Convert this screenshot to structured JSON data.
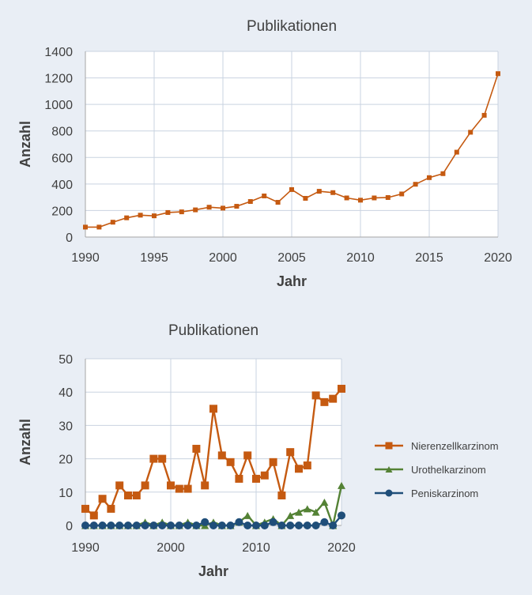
{
  "chart_data": [
    {
      "type": "line",
      "title": "Publikationen",
      "xlabel": "Jahr",
      "ylabel": "Anzahl",
      "xlim": [
        1990,
        2020
      ],
      "ylim": [
        0,
        1400
      ],
      "xticks": [
        1990,
        1995,
        2000,
        2005,
        2010,
        2015,
        2020
      ],
      "yticks": [
        0,
        200,
        400,
        600,
        800,
        1000,
        1200,
        1400
      ],
      "grid": true,
      "series": [
        {
          "name": "Publikationen",
          "color": "#c55a11",
          "marker": "square",
          "x": [
            1990,
            1991,
            1992,
            1993,
            1994,
            1995,
            1996,
            1997,
            1998,
            1999,
            2000,
            2001,
            2002,
            2003,
            2004,
            2005,
            2006,
            2007,
            2008,
            2009,
            2010,
            2011,
            2012,
            2013,
            2014,
            2015,
            2016,
            2017,
            2018,
            2019,
            2020
          ],
          "y": [
            75,
            75,
            112,
            145,
            165,
            160,
            185,
            190,
            205,
            225,
            218,
            232,
            268,
            310,
            262,
            358,
            292,
            345,
            335,
            295,
            278,
            295,
            298,
            325,
            398,
            448,
            478,
            640,
            790,
            918,
            1232
          ]
        }
      ]
    },
    {
      "type": "line",
      "title": "Publikationen",
      "xlabel": "Jahr",
      "ylabel": "Anzahl",
      "xlim": [
        1990,
        2020
      ],
      "ylim": [
        0,
        50
      ],
      "xticks": [
        1990,
        2000,
        2010,
        2020
      ],
      "yticks": [
        0,
        10,
        20,
        30,
        40,
        50
      ],
      "grid": true,
      "legend": "right",
      "series": [
        {
          "name": "Nierenzellkarzinom",
          "color": "#c55a11",
          "marker": "square",
          "x": [
            1990,
            1991,
            1992,
            1993,
            1994,
            1995,
            1996,
            1997,
            1998,
            1999,
            2000,
            2001,
            2002,
            2003,
            2004,
            2005,
            2006,
            2007,
            2008,
            2009,
            2010,
            2011,
            2012,
            2013,
            2014,
            2015,
            2016,
            2017,
            2018,
            2019,
            2020
          ],
          "y": [
            5,
            3,
            8,
            5,
            12,
            9,
            9,
            12,
            20,
            20,
            12,
            11,
            11,
            23,
            12,
            35,
            21,
            19,
            14,
            21,
            14,
            15,
            19,
            9,
            22,
            17,
            18,
            39,
            37,
            38,
            41
          ]
        },
        {
          "name": "Urothelkarzinom",
          "color": "#548235",
          "marker": "triangle",
          "x": [
            1990,
            1991,
            1992,
            1993,
            1994,
            1995,
            1996,
            1997,
            1998,
            1999,
            2000,
            2001,
            2002,
            2003,
            2004,
            2005,
            2006,
            2007,
            2008,
            2009,
            2010,
            2011,
            2012,
            2013,
            2014,
            2015,
            2016,
            2017,
            2018,
            2019,
            2020
          ],
          "y": [
            0,
            0,
            0,
            0,
            0,
            0,
            0,
            1,
            0,
            1,
            0,
            0,
            1,
            0,
            0,
            1,
            0,
            0,
            1,
            3,
            0,
            1,
            2,
            0,
            3,
            4,
            5,
            4,
            7,
            0,
            12
          ]
        },
        {
          "name": "Peniskarzinom",
          "color": "#1f4e79",
          "marker": "circle",
          "x": [
            1990,
            1991,
            1992,
            1993,
            1994,
            1995,
            1996,
            1997,
            1998,
            1999,
            2000,
            2001,
            2002,
            2003,
            2004,
            2005,
            2006,
            2007,
            2008,
            2009,
            2010,
            2011,
            2012,
            2013,
            2014,
            2015,
            2016,
            2017,
            2018,
            2019,
            2020
          ],
          "y": [
            0,
            0,
            0,
            0,
            0,
            0,
            0,
            0,
            0,
            0,
            0,
            0,
            0,
            0,
            1,
            0,
            0,
            0,
            1,
            0,
            0,
            0,
            1,
            0,
            0,
            0,
            0,
            0,
            1,
            0,
            3
          ]
        }
      ]
    }
  ]
}
